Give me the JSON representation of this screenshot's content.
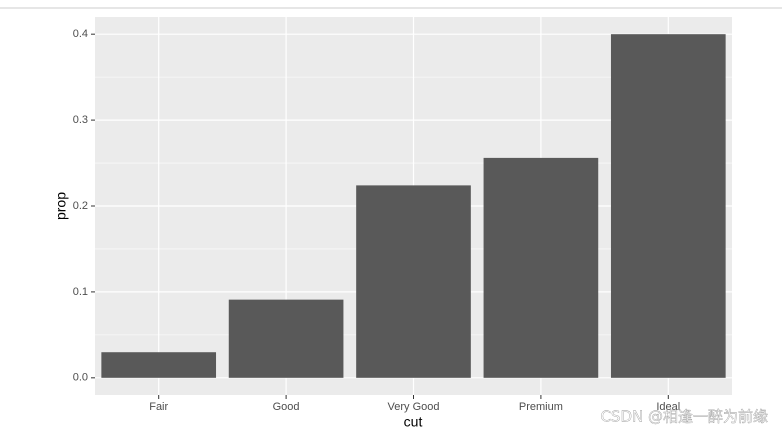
{
  "chart_data": {
    "type": "bar",
    "x_label": "cut",
    "y_label": "prop",
    "categories": [
      "Fair",
      "Good",
      "Very Good",
      "Premium",
      "Ideal"
    ],
    "values": [
      0.0298,
      0.091,
      0.224,
      0.256,
      0.4
    ],
    "color": "#595959",
    "ylim": [
      -0.02,
      0.42
    ],
    "yticks": [
      {
        "value": 0,
        "label": "0.0"
      },
      0.1,
      0.2,
      0.3,
      0.4
    ],
    "grid": true,
    "watermark": "CSDN @相逢一醉为前缘"
  }
}
